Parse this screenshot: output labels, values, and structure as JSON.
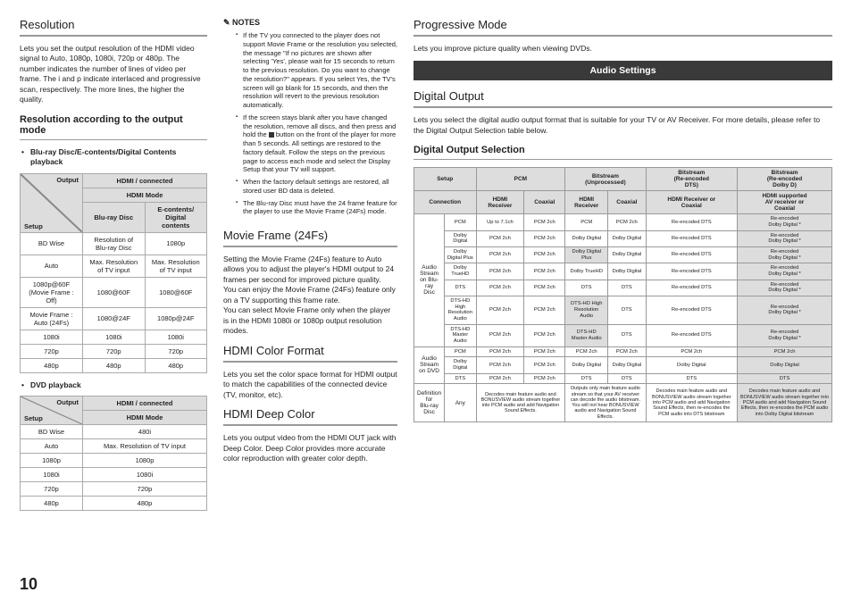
{
  "page_number": "10",
  "col1": {
    "h_resolution": "Resolution",
    "resolution_body": "Lets you set the output resolution of the HDMI video signal to Auto, 1080p, 1080i, 720p or 480p. The number indicates the number of lines of video per frame. The i and p indicate interlaced and progressive scan, respectively. The more lines, the higher the quality.",
    "h_res_mode": "Resolution according to the output mode",
    "bullet_bd": "Blu-ray Disc/E-contents/Digital Contents playback",
    "bullet_dvd": "DVD playback",
    "t1": {
      "output": "Output",
      "setup": "Setup",
      "hdmi_conn": "HDMI / connected",
      "hdmi_mode": "HDMI Mode",
      "bd": "Blu-ray Disc",
      "ec": "E-contents/\nDigital\ncontents",
      "rows": [
        [
          "BD Wise",
          "Resolution of\nBlu-ray Disc",
          "1080p"
        ],
        [
          "Auto",
          "Max. Resolution\nof TV input",
          "Max. Resolution\nof TV input"
        ],
        [
          "1080p@60F\n(Movie Frame : Off)",
          "1080@60F",
          "1080@60F"
        ],
        [
          "Movie Frame :\nAuto (24Fs)",
          "1080@24F",
          "1080p@24F"
        ],
        [
          "1080i",
          "1080i",
          "1080i"
        ],
        [
          "720p",
          "720p",
          "720p"
        ],
        [
          "480p",
          "480p",
          "480p"
        ]
      ]
    },
    "t2": {
      "output": "Output",
      "setup": "Setup",
      "hdmi_conn": "HDMI / connected",
      "hdmi_mode": "HDMI Mode",
      "rows": [
        [
          "BD Wise",
          "480i"
        ],
        [
          "Auto",
          "Max. Resolution of TV input"
        ],
        [
          "1080p",
          "1080p"
        ],
        [
          "1080i",
          "1080i"
        ],
        [
          "720p",
          "720p"
        ],
        [
          "480p",
          "480p"
        ]
      ]
    }
  },
  "col2": {
    "notes_title": "NOTES",
    "notes": [
      "If the TV you connected to the player does not support Movie Frame or the resolution you selected, the message \"If no pictures are shown after selecting 'Yes', please wait for 15 seconds to return to the previous resolution. Do you want to change the resolution?\" appears. If you select Yes, the TV's screen will go blank for 15 seconds, and then the resolution will revert to the previous resolution automatically.",
      "If the screen stays blank after you have changed the resolution, remove all discs, and then press and hold the ■ button on the front of the player for more than 5 seconds. All settings are restored to the factory default. Follow the steps on the previous page to access each mode and select the Display Setup that your TV will support.",
      "When the factory default settings are restored, all stored user BD data is deleted.",
      "The Blu-ray Disc must have the 24 frame feature for the player to use the Movie Frame (24Fs) mode."
    ],
    "h_movie": "Movie Frame (24Fs)",
    "movie_body": "Setting the Movie Frame (24Fs) feature to Auto allows you to adjust the player's HDMI output to 24 frames per second for improved picture quality.\nYou can enjoy the Movie Frame (24Fs) feature only on a TV supporting this frame rate.\nYou can select Movie Frame only when the player is in the HDMI 1080i or 1080p output resolution modes.",
    "h_hcf": "HDMI Color Format",
    "hcf_body": "Lets you set the color space format for HDMI output to match the capabilities of the connected device (TV, monitor, etc).",
    "h_hdc": "HDMI Deep Color",
    "hdc_body": "Lets you output video from the HDMI OUT jack with Deep Color. Deep Color provides more accurate color reproduction with greater color depth."
  },
  "col3": {
    "h_prog": "Progressive Mode",
    "prog_body": "Lets you improve picture quality when viewing DVDs.",
    "audio_bar": "Audio Settings",
    "h_digital": "Digital Output",
    "digital_body": "Lets you select the digital audio output format that is suitable for your TV or AV Receiver. For more details, please refer to the Digital Output Selection table below.",
    "h_dos": "Digital Output Selection",
    "dos": {
      "setup": "Setup",
      "pcm": "PCM",
      "bs_un": "Bitstream\n(Unprocessed)",
      "bs_dts": "Bitstream\n(Re-encoded\nDTS)",
      "bs_dd": "Bitstream\n(Re-encoded\nDolby D)",
      "connection": "Connection",
      "hdmi_r": "HDMI\nReceiver",
      "coax": "Coaxial",
      "hdmi_coax": "HDMI Receiver or\nCoaxial",
      "hdmi_av": "HDMI supported\nAV receiver or\nCoaxial",
      "asbr": "Audio Stream\non Blu-ray\nDisc",
      "asdvd": "Audio Stream\non DVD",
      "defbr": "Definition for\nBlu-ray Disc",
      "any": "Any",
      "rows_bd": [
        [
          "PCM",
          "Up to 7.1ch",
          "PCM 2ch",
          "PCM",
          "PCM 2ch",
          "Re-encoded DTS",
          "Re-encoded\nDolby Digital *"
        ],
        [
          "Dolby Digital",
          "PCM 2ch",
          "PCM 2ch",
          "Dolby Digital",
          "Dolby Digital",
          "Re-encoded DTS",
          "Re-encoded\nDolby Digital *"
        ],
        [
          "Dolby Digital Plus",
          "PCM 2ch",
          "PCM 2ch",
          "Dolby Digital\nPlus",
          "Dolby Digital",
          "Re-encoded DTS",
          "Re-encoded\nDolby Digital *"
        ],
        [
          "Dolby TrueHD",
          "PCM 2ch",
          "PCM 2ch",
          "Dolby TrueHD",
          "Dolby Digital",
          "Re-encoded DTS",
          "Re-encoded\nDolby Digital *"
        ],
        [
          "DTS",
          "PCM 2ch",
          "PCM 2ch",
          "DTS",
          "DTS",
          "Re-encoded DTS",
          "Re-encoded\nDolby Digital *"
        ],
        [
          "DTS-HD High\nResolution Audio",
          "PCM 2ch",
          "PCM 2ch",
          "DTS-HD High\nResolution\nAudio",
          "DTS",
          "Re-encoded DTS",
          "Re-encoded\nDolby Digital *"
        ],
        [
          "DTS-HD Master\nAudio",
          "PCM 2ch",
          "PCM 2ch",
          "DTS-HD\nMaster Audio",
          "DTS",
          "Re-encoded DTS",
          "Re-encoded\nDolby Digital *"
        ]
      ],
      "rows_dvd": [
        [
          "PCM",
          "PCM 2ch",
          "PCM 2ch",
          "PCM 2ch",
          "PCM 2ch",
          "PCM 2ch",
          "PCM 2ch"
        ],
        [
          "Dolby Digital",
          "PCM 2ch",
          "PCM 2ch",
          "Dolby Digital",
          "Dolby Digital",
          "Dolby Digital",
          "Dolby Digital"
        ],
        [
          "DTS",
          "PCM 2ch",
          "PCM 2ch",
          "DTS",
          "DTS",
          "DTS",
          "DTS"
        ]
      ],
      "def_row": [
        "Decodes main feature audio and BONUSVIEW audio stream together into PCM audio and add Navigation Sound Effects.",
        "Outputs only main feature audio stream so that your AV receiver can decode the audio bitstream.\nYou will not hear BONUSVIEW audio and Navigation Sound Effects.",
        "Decodes main feature audio and BONUSVIEW audio stream together into PCM audio and add Navigation Sound Effects, then re-encodes the PCM audio into DTS bitstream",
        "Decodes main feature audio and BONUSVIEW audio stream together into PCM audio and add Navigation Sound Effects, then re-encodes the PCM audio into Dolby Digital bitstream"
      ]
    }
  }
}
